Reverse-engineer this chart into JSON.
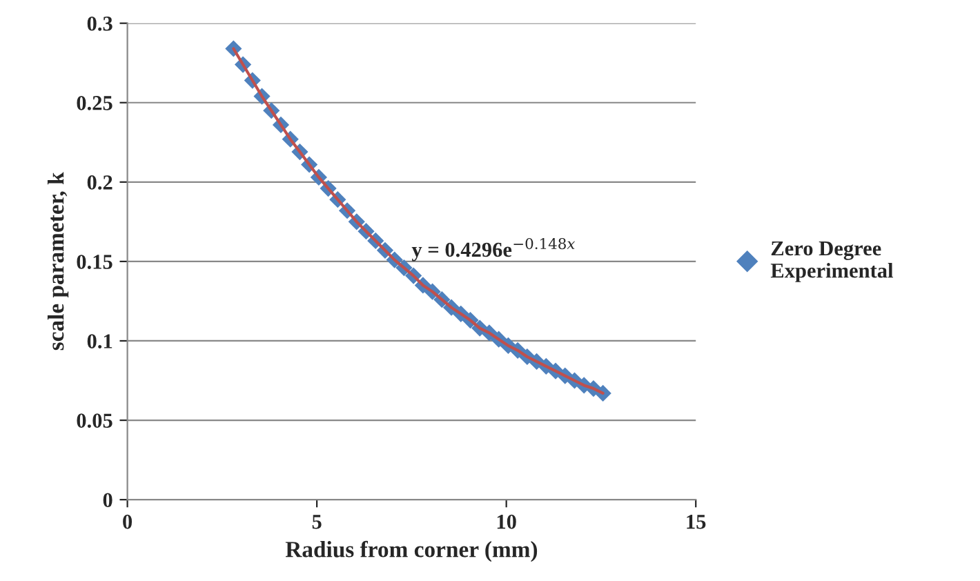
{
  "chart_data": {
    "type": "scatter",
    "xlabel": "Radius from corner (mm)",
    "ylabel": "scale parameter, k",
    "x": [
      2.8,
      3.05,
      3.3,
      3.55,
      3.8,
      4.05,
      4.3,
      4.55,
      4.8,
      5.05,
      5.3,
      5.55,
      5.8,
      6.05,
      6.3,
      6.55,
      6.8,
      7.05,
      7.3,
      7.55,
      7.8,
      8.05,
      8.3,
      8.55,
      8.8,
      9.05,
      9.3,
      9.55,
      9.8,
      10.05,
      10.3,
      10.55,
      10.8,
      11.05,
      11.3,
      11.55,
      11.8,
      12.05,
      12.3,
      12.55
    ],
    "series": [
      {
        "name": "Zero Degree Experimental",
        "color": "#4f81bd",
        "marker": "diamond",
        "values": [
          0.284,
          0.274,
          0.264,
          0.254,
          0.245,
          0.236,
          0.227,
          0.219,
          0.211,
          0.203,
          0.196,
          0.189,
          0.182,
          0.175,
          0.169,
          0.163,
          0.157,
          0.151,
          0.146,
          0.141,
          0.135,
          0.131,
          0.126,
          0.121,
          0.117,
          0.113,
          0.108,
          0.105,
          0.101,
          0.097,
          0.094,
          0.09,
          0.087,
          0.084,
          0.081,
          0.078,
          0.075,
          0.072,
          0.07,
          0.067
        ]
      },
      {
        "type": "line",
        "color": "#c0504d",
        "line_style": "solid",
        "values": [
          0.284,
          0.274,
          0.264,
          0.254,
          0.245,
          0.236,
          0.227,
          0.219,
          0.211,
          0.203,
          0.196,
          0.189,
          0.182,
          0.175,
          0.169,
          0.163,
          0.157,
          0.151,
          0.146,
          0.141,
          0.135,
          0.131,
          0.126,
          0.121,
          0.117,
          0.113,
          0.108,
          0.105,
          0.101,
          0.097,
          0.094,
          0.09,
          0.087,
          0.084,
          0.081,
          0.078,
          0.075,
          0.072,
          0.07,
          0.067
        ]
      }
    ],
    "annotations": [
      "y = 0.4296e$^{−0.148x}$"
    ],
    "xlim": [
      0,
      15
    ],
    "xticks": [
      0,
      5,
      10,
      15
    ],
    "ylim": [
      0,
      0.3
    ],
    "yticks": [
      0,
      0.05,
      0.1,
      0.15,
      0.2,
      0.25,
      0.3
    ],
    "grid": "y",
    "legend": "right"
  }
}
